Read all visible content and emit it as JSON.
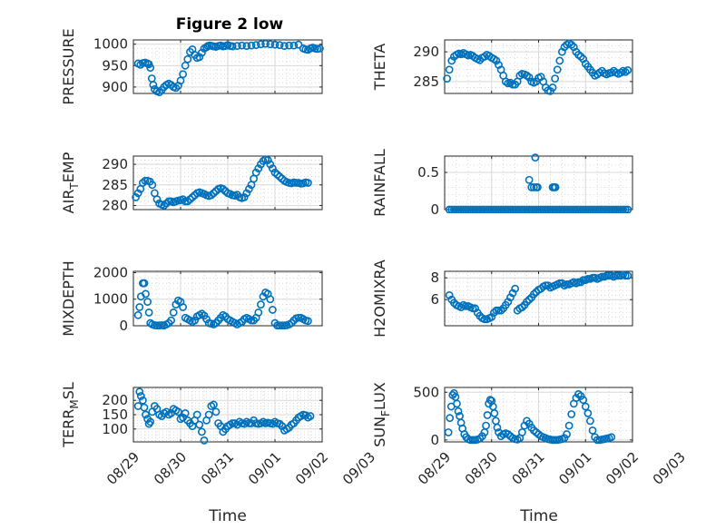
{
  "title": "Figure 2 low",
  "colors": {
    "marker": "#0072BD",
    "axes": "#262626",
    "grid": "#dcdcdc"
  },
  "x_tick_labels": [
    "08/29",
    "08/30",
    "08/31",
    "09/01",
    "09/02",
    "09/03"
  ],
  "x_label": "Time",
  "chart_data": [
    {
      "type": "scatter",
      "id": "pressure",
      "ylabel": "PRESSURE",
      "ylabel_sub": null,
      "xlim": [
        0,
        4
      ],
      "ylim": [
        885,
        1010
      ],
      "yticks": [
        900,
        950,
        1000
      ],
      "show_x_ticklabels": false,
      "grid": true,
      "x": [
        0.1,
        0.15,
        0.2,
        0.25,
        0.3,
        0.33,
        0.36,
        0.39,
        0.42,
        0.45,
        0.5,
        0.55,
        0.6,
        0.65,
        0.7,
        0.75,
        0.8,
        0.85,
        0.9,
        0.95,
        1.0,
        1.05,
        1.1,
        1.15,
        1.2,
        1.25,
        1.3,
        1.35,
        1.4,
        1.45,
        1.5,
        1.55,
        1.58,
        1.62,
        1.66,
        1.7,
        1.75,
        1.8,
        1.85,
        1.9,
        1.95,
        2.0,
        2.05,
        2.1,
        2.2,
        2.3,
        2.4,
        2.5,
        2.6,
        2.7,
        2.8,
        2.9,
        3.0,
        3.1,
        3.2,
        3.3,
        3.4,
        3.5,
        3.6,
        3.65,
        3.7,
        3.75,
        3.8,
        3.85,
        3.9,
        3.95
      ],
      "y": [
        955,
        952,
        956,
        957,
        955,
        953,
        945,
        920,
        905,
        895,
        890,
        888,
        893,
        900,
        905,
        908,
        905,
        900,
        898,
        903,
        915,
        930,
        950,
        965,
        982,
        988,
        975,
        968,
        970,
        980,
        990,
        993,
        996,
        997,
        996,
        995,
        994,
        996,
        997,
        995,
        996,
        998,
        996,
        995,
        996,
        997,
        996,
        997,
        998,
        1000,
        1001,
        1000,
        999,
        998,
        996,
        997,
        997,
        999,
        990,
        988,
        987,
        990,
        992,
        990,
        989,
        990
      ]
    },
    {
      "type": "scatter",
      "id": "theta",
      "ylabel": "THETA",
      "ylabel_sub": null,
      "xlim": [
        0,
        4
      ],
      "ylim": [
        283,
        292
      ],
      "yticks": [
        285,
        290
      ],
      "show_x_ticklabels": false,
      "grid": true,
      "x": [
        0.05,
        0.1,
        0.15,
        0.2,
        0.25,
        0.3,
        0.35,
        0.4,
        0.45,
        0.5,
        0.55,
        0.6,
        0.65,
        0.7,
        0.75,
        0.8,
        0.85,
        0.9,
        0.95,
        1.0,
        1.05,
        1.1,
        1.15,
        1.2,
        1.25,
        1.3,
        1.35,
        1.4,
        1.45,
        1.5,
        1.55,
        1.6,
        1.65,
        1.7,
        1.75,
        1.8,
        1.85,
        1.9,
        1.95,
        2.0,
        2.05,
        2.1,
        2.15,
        2.2,
        2.25,
        2.3,
        2.35,
        2.4,
        2.45,
        2.5,
        2.55,
        2.6,
        2.65,
        2.7,
        2.75,
        2.8,
        2.85,
        2.9,
        2.95,
        3.0,
        3.05,
        3.1,
        3.15,
        3.2,
        3.25,
        3.3,
        3.35,
        3.4,
        3.45,
        3.5,
        3.55,
        3.6,
        3.65,
        3.7,
        3.75,
        3.8,
        3.85,
        3.9
      ],
      "y": [
        285.5,
        287,
        288.5,
        289.2,
        289.5,
        289.7,
        289.6,
        289.8,
        289.6,
        289.4,
        289.5,
        289.3,
        289,
        288.8,
        288.6,
        289,
        289.2,
        289.5,
        289.3,
        289,
        288.8,
        288.5,
        287.8,
        287,
        286,
        285,
        284.7,
        284.8,
        284.5,
        284.5,
        285,
        286,
        286.3,
        286.2,
        286,
        285.7,
        285,
        284.8,
        285,
        285.6,
        285.8,
        285,
        284,
        283.5,
        283.4,
        284,
        285.5,
        287,
        288.5,
        290,
        290.8,
        291.2,
        291.4,
        291.2,
        290.8,
        290,
        289.5,
        289.2,
        288.8,
        288,
        287.5,
        287,
        286.5,
        286,
        286.2,
        286.5,
        286.8,
        286.4,
        286.2,
        286.4,
        286.5,
        286.8,
        286.5,
        286.3,
        286.5,
        286.8,
        286.6,
        286.9
      ]
    },
    {
      "type": "scatter",
      "id": "air_temp",
      "ylabel": "AIR",
      "ylabel_sub": "T",
      "ylabel_suffix": "EMP",
      "xlim": [
        0,
        4
      ],
      "ylim": [
        279,
        292
      ],
      "yticks": [
        280,
        285,
        290
      ],
      "show_x_ticklabels": false,
      "grid": true,
      "x": [
        0.05,
        0.1,
        0.15,
        0.2,
        0.25,
        0.3,
        0.35,
        0.4,
        0.45,
        0.5,
        0.55,
        0.6,
        0.65,
        0.7,
        0.75,
        0.8,
        0.85,
        0.9,
        0.95,
        1.0,
        1.05,
        1.1,
        1.15,
        1.2,
        1.25,
        1.3,
        1.35,
        1.4,
        1.45,
        1.5,
        1.55,
        1.6,
        1.65,
        1.7,
        1.75,
        1.8,
        1.85,
        1.9,
        1.95,
        2.0,
        2.05,
        2.1,
        2.15,
        2.2,
        2.25,
        2.3,
        2.35,
        2.4,
        2.45,
        2.5,
        2.55,
        2.6,
        2.65,
        2.7,
        2.75,
        2.8,
        2.85,
        2.9,
        2.95,
        3.0,
        3.05,
        3.1,
        3.15,
        3.2,
        3.25,
        3.3,
        3.35,
        3.4,
        3.45,
        3.5,
        3.55,
        3.6,
        3.65,
        3.7
      ],
      "y": [
        282,
        283,
        284,
        285.5,
        286,
        286,
        285.8,
        285,
        283,
        281.5,
        280.5,
        280.2,
        280,
        280.5,
        281,
        281,
        280.8,
        281,
        281.2,
        281.3,
        281.5,
        281,
        281,
        281.5,
        282,
        282.5,
        283,
        283.2,
        283,
        282.8,
        282.5,
        282.3,
        282.5,
        283,
        283.5,
        284,
        284.2,
        284,
        283.5,
        283,
        282.8,
        282.5,
        282.4,
        282.6,
        282,
        281.8,
        282,
        283,
        284,
        285,
        286.5,
        288,
        289,
        290,
        290.8,
        291.2,
        291,
        290,
        289,
        288,
        287.5,
        287,
        286.5,
        286,
        285.7,
        285.5,
        285.4,
        285.6,
        285.5,
        285.5,
        285.3,
        285.4,
        285.6,
        285.5
      ]
    },
    {
      "type": "scatter",
      "id": "rainfall",
      "ylabel": "RAINFALL",
      "ylabel_sub": null,
      "xlim": [
        0,
        4
      ],
      "ylim": [
        0,
        0.72
      ],
      "yticks": [
        0,
        0.5
      ],
      "show_x_ticklabels": false,
      "grid": true,
      "x": [
        0.1,
        0.15,
        0.2,
        0.25,
        0.3,
        0.35,
        0.4,
        0.45,
        0.5,
        0.55,
        0.6,
        0.65,
        0.7,
        0.75,
        0.8,
        0.85,
        0.9,
        0.95,
        1.0,
        1.05,
        1.1,
        1.15,
        1.2,
        1.25,
        1.3,
        1.35,
        1.4,
        1.45,
        1.5,
        1.55,
        1.6,
        1.65,
        1.7,
        1.75,
        1.8,
        1.85,
        1.9,
        1.95,
        2.0,
        2.05,
        2.1,
        2.15,
        2.2,
        2.25,
        2.3,
        2.35,
        2.4,
        2.45,
        2.5,
        2.55,
        2.6,
        2.65,
        2.7,
        2.75,
        2.8,
        2.85,
        2.9,
        2.95,
        3.0,
        3.05,
        3.1,
        3.15,
        3.2,
        3.25,
        3.3,
        3.35,
        3.4,
        3.45,
        3.5,
        3.55,
        3.6,
        3.65,
        3.7,
        3.75,
        3.8,
        3.85,
        3.9,
        1.8,
        1.85,
        1.9,
        1.93,
        1.95,
        1.98,
        2.3,
        2.33,
        2.36
      ],
      "y": [
        0,
        0,
        0,
        0,
        0,
        0,
        0,
        0,
        0,
        0,
        0,
        0,
        0,
        0,
        0,
        0,
        0,
        0,
        0,
        0,
        0,
        0,
        0,
        0,
        0,
        0,
        0,
        0,
        0,
        0,
        0,
        0,
        0,
        0,
        0,
        0,
        0,
        0,
        0,
        0,
        0,
        0,
        0,
        0,
        0,
        0,
        0,
        0,
        0,
        0,
        0,
        0,
        0,
        0,
        0,
        0,
        0,
        0,
        0,
        0,
        0,
        0,
        0,
        0,
        0,
        0,
        0,
        0,
        0,
        0,
        0,
        0,
        0,
        0,
        0,
        0,
        0,
        0.4,
        0.3,
        0.3,
        0.7,
        0.3,
        0.3,
        0.3,
        0.3,
        0.3
      ]
    },
    {
      "type": "scatter",
      "id": "mixdepth",
      "ylabel": "MIXDEPTH",
      "ylabel_sub": null,
      "xlim": [
        0,
        4
      ],
      "ylim": [
        0,
        2050
      ],
      "yticks": [
        0,
        1000,
        2000
      ],
      "show_x_ticklabels": false,
      "grid": true,
      "x": [
        0.1,
        0.13,
        0.16,
        0.2,
        0.23,
        0.26,
        0.3,
        0.33,
        0.36,
        0.4,
        0.45,
        0.5,
        0.55,
        0.6,
        0.65,
        0.7,
        0.75,
        0.8,
        0.85,
        0.9,
        0.95,
        1.0,
        1.05,
        1.1,
        1.15,
        1.2,
        1.25,
        1.3,
        1.35,
        1.4,
        1.45,
        1.5,
        1.55,
        1.6,
        1.65,
        1.7,
        1.75,
        1.8,
        1.85,
        1.9,
        1.95,
        2.0,
        2.05,
        2.1,
        2.15,
        2.2,
        2.25,
        2.3,
        2.35,
        2.4,
        2.45,
        2.5,
        2.55,
        2.6,
        2.65,
        2.7,
        2.75,
        2.8,
        2.85,
        2.9,
        2.95,
        3.0,
        3.05,
        3.1,
        3.15,
        3.2,
        3.25,
        3.3,
        3.35,
        3.4,
        3.45,
        3.5,
        3.55,
        3.6,
        3.65,
        3.7
      ],
      "y": [
        400,
        700,
        1100,
        1600,
        1600,
        1200,
        900,
        500,
        100,
        50,
        20,
        10,
        10,
        20,
        10,
        50,
        100,
        200,
        500,
        800,
        950,
        900,
        700,
        300,
        250,
        200,
        150,
        200,
        350,
        400,
        450,
        380,
        250,
        100,
        80,
        50,
        100,
        200,
        300,
        400,
        350,
        250,
        200,
        150,
        100,
        50,
        100,
        150,
        250,
        300,
        250,
        200,
        200,
        300,
        500,
        800,
        1100,
        1250,
        1200,
        1000,
        600,
        100,
        10,
        10,
        10,
        10,
        20,
        50,
        100,
        200,
        280,
        300,
        300,
        250,
        200,
        180
      ]
    },
    {
      "type": "scatter",
      "id": "h2omixra",
      "ylabel": "H2OMIXRA",
      "ylabel_sub": null,
      "xlim": [
        0,
        4
      ],
      "ylim": [
        3.6,
        8.6
      ],
      "yticks": [
        6,
        8
      ],
      "show_x_ticklabels": false,
      "grid": true,
      "x": [
        0.1,
        0.15,
        0.2,
        0.25,
        0.3,
        0.35,
        0.4,
        0.45,
        0.5,
        0.55,
        0.6,
        0.65,
        0.7,
        0.75,
        0.8,
        0.85,
        0.9,
        0.95,
        1.0,
        1.05,
        1.1,
        1.15,
        1.2,
        1.25,
        1.3,
        1.35,
        1.4,
        1.45,
        1.5,
        1.55,
        1.6,
        1.65,
        1.7,
        1.75,
        1.8,
        1.85,
        1.9,
        1.95,
        2.0,
        2.05,
        2.1,
        2.15,
        2.2,
        2.25,
        2.3,
        2.35,
        2.4,
        2.45,
        2.5,
        2.55,
        2.6,
        2.65,
        2.7,
        2.75,
        2.8,
        2.85,
        2.9,
        2.95,
        3.0,
        3.05,
        3.1,
        3.15,
        3.2,
        3.25,
        3.3,
        3.35,
        3.4,
        3.45,
        3.5,
        3.55,
        3.6,
        3.65,
        3.7,
        3.75,
        3.8,
        3.85,
        3.9
      ],
      "y": [
        6.4,
        6,
        5.7,
        5.5,
        5.4,
        5.3,
        5.5,
        5.4,
        5.4,
        5.3,
        5.2,
        5.2,
        4.8,
        4.5,
        4.3,
        4.2,
        4.2,
        4.3,
        4.4,
        4.8,
        5,
        5,
        5,
        5.2,
        5.5,
        5.8,
        6.2,
        6.6,
        7,
        5,
        5.2,
        5.3,
        5.5,
        5.8,
        6,
        6.2,
        6.5,
        6.7,
        6.9,
        7,
        7.2,
        7.3,
        7.3,
        7.1,
        7.2,
        7.3,
        7.4,
        7.5,
        7.5,
        7.3,
        7.4,
        7.4,
        7.5,
        7.6,
        7.5,
        7.6,
        7.6,
        7.8,
        7.8,
        7.9,
        7.9,
        8,
        8,
        7.9,
        8,
        8.1,
        8.1,
        8.2,
        8.2,
        8.2,
        8.1,
        8.2,
        8.2,
        8.2,
        8.3,
        8.2,
        8.2
      ]
    },
    {
      "type": "scatter",
      "id": "terr_msl",
      "ylabel": "TERR",
      "ylabel_sub": "M",
      "ylabel_suffix": "SL",
      "xlim": [
        0,
        4
      ],
      "ylim": [
        55,
        245
      ],
      "yticks": [
        100,
        150,
        200
      ],
      "show_x_ticklabels": true,
      "grid": true,
      "x": [
        0.1,
        0.13,
        0.16,
        0.2,
        0.23,
        0.26,
        0.3,
        0.33,
        0.36,
        0.4,
        0.45,
        0.5,
        0.55,
        0.6,
        0.65,
        0.7,
        0.75,
        0.8,
        0.85,
        0.9,
        0.95,
        1.0,
        1.05,
        1.1,
        1.15,
        1.2,
        1.25,
        1.3,
        1.35,
        1.4,
        1.45,
        1.5,
        1.55,
        1.6,
        1.65,
        1.7,
        1.75,
        1.8,
        1.85,
        1.9,
        1.95,
        2.0,
        2.05,
        2.1,
        2.15,
        2.2,
        2.25,
        2.3,
        2.35,
        2.4,
        2.45,
        2.5,
        2.55,
        2.6,
        2.65,
        2.7,
        2.75,
        2.8,
        2.85,
        2.9,
        2.95,
        3.0,
        3.05,
        3.1,
        3.15,
        3.2,
        3.25,
        3.3,
        3.35,
        3.4,
        3.45,
        3.5,
        3.55,
        3.6,
        3.65,
        3.7,
        3.75
      ],
      "y": [
        180,
        230,
        215,
        200,
        175,
        150,
        135,
        118,
        125,
        160,
        180,
        170,
        150,
        145,
        155,
        160,
        150,
        155,
        170,
        165,
        160,
        135,
        140,
        155,
        130,
        120,
        110,
        130,
        150,
        115,
        90,
        60,
        130,
        150,
        180,
        185,
        160,
        120,
        110,
        90,
        100,
        110,
        115,
        120,
        120,
        115,
        125,
        120,
        118,
        125,
        120,
        120,
        130,
        120,
        118,
        120,
        125,
        120,
        122,
        120,
        118,
        125,
        120,
        118,
        110,
        95,
        100,
        105,
        115,
        120,
        130,
        140,
        145,
        150,
        148,
        140,
        145
      ]
    },
    {
      "type": "scatter",
      "id": "sun_flux",
      "ylabel": "SUN",
      "ylabel_sub": "F",
      "ylabel_suffix": "LUX",
      "xlim": [
        0,
        4
      ],
      "ylim": [
        -20,
        550
      ],
      "yticks": [
        0,
        500
      ],
      "show_x_ticklabels": true,
      "grid": true,
      "x": [
        0.08,
        0.11,
        0.14,
        0.17,
        0.2,
        0.23,
        0.26,
        0.29,
        0.32,
        0.35,
        0.38,
        0.42,
        0.46,
        0.5,
        0.55,
        0.6,
        0.65,
        0.7,
        0.75,
        0.8,
        0.85,
        0.88,
        0.91,
        0.94,
        0.97,
        1.0,
        1.03,
        1.06,
        1.09,
        1.12,
        1.15,
        1.2,
        1.25,
        1.3,
        1.35,
        1.4,
        1.45,
        1.5,
        1.55,
        1.6,
        1.65,
        1.7,
        1.75,
        1.8,
        1.85,
        1.9,
        1.95,
        2.0,
        2.05,
        2.1,
        2.15,
        2.2,
        2.25,
        2.3,
        2.35,
        2.4,
        2.45,
        2.5,
        2.55,
        2.6,
        2.65,
        2.7,
        2.75,
        2.8,
        2.85,
        2.9,
        2.95,
        3.0,
        3.05,
        3.1,
        3.15,
        3.2,
        3.25,
        3.3,
        3.35,
        3.4,
        3.45,
        3.5,
        3.55
      ],
      "y": [
        80,
        230,
        350,
        470,
        490,
        450,
        380,
        300,
        250,
        180,
        120,
        60,
        30,
        10,
        0,
        0,
        0,
        5,
        15,
        40,
        80,
        150,
        260,
        380,
        420,
        410,
        350,
        280,
        200,
        130,
        80,
        40,
        60,
        70,
        60,
        40,
        20,
        10,
        5,
        20,
        80,
        150,
        200,
        170,
        130,
        100,
        80,
        60,
        40,
        30,
        20,
        10,
        5,
        0,
        0,
        0,
        5,
        10,
        20,
        60,
        150,
        270,
        380,
        440,
        480,
        460,
        420,
        350,
        280,
        200,
        100,
        30,
        0,
        0,
        5,
        10,
        15,
        20,
        30
      ]
    }
  ]
}
